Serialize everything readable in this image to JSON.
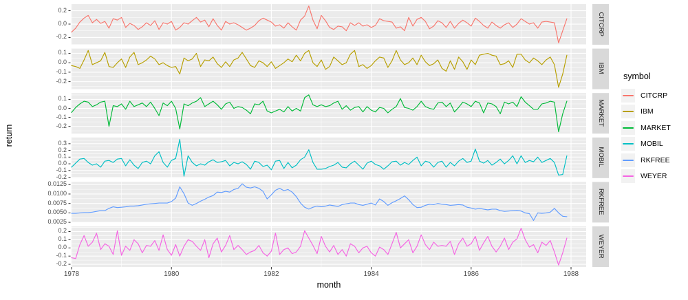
{
  "style": {
    "panel_bg": "#EBEBEB",
    "strip_bg": "#D9D9D9",
    "grid_color": "#FFFFFF",
    "axis_text_color": "#4D4D4D",
    "tick_mark_color": "#333333",
    "strip_text_color": "#1A1A1A",
    "legend_key_bg": "#F2F2F2",
    "background": "#FFFFFF"
  },
  "chart_data": {
    "type": "line",
    "title": "",
    "xlabel": "month",
    "ylabel": "return",
    "grid": true,
    "legend": {
      "title": "symbol",
      "position": "right",
      "entries": [
        "CITCRP",
        "IBM",
        "MARKET",
        "MOBIL",
        "RKFREE",
        "WEYER"
      ]
    },
    "x": {
      "start_year": 1978,
      "months": 120,
      "tick_values": [
        1978,
        1980,
        1982,
        1984,
        1986,
        1988
      ],
      "tick_labels": [
        "1978",
        "1980",
        "1982",
        "1984",
        "1986",
        "1988"
      ],
      "minor_tick_values": [
        1979,
        1981,
        1983,
        1985,
        1987
      ]
    },
    "facets": [
      {
        "symbol": "CITCRP",
        "color": "#F8766D",
        "ylim": [
          -0.308,
          0.298
        ],
        "ytick_values": [
          0.2,
          0.0,
          -0.2
        ],
        "ytick_labels": [
          "0.2",
          "0.0",
          "-0.2"
        ],
        "values": [
          -0.12,
          -0.06,
          0.03,
          0.09,
          0.13,
          0.02,
          0.07,
          0.01,
          0.04,
          -0.06,
          0.08,
          0.06,
          0.1,
          -0.05,
          0.01,
          -0.02,
          -0.08,
          -0.04,
          0.02,
          -0.02,
          0.05,
          -0.08,
          0.02,
          0.0,
          0.04,
          -0.09,
          -0.05,
          0.02,
          0.0,
          0.05,
          0.1,
          0.03,
          0.06,
          -0.04,
          0.08,
          -0.02,
          -0.09,
          0.04,
          0.0,
          0.02,
          -0.01,
          -0.05,
          -0.09,
          -0.06,
          -0.02,
          0.05,
          0.09,
          0.06,
          0.03,
          -0.03,
          -0.01,
          -0.06,
          0.02,
          -0.04,
          -0.09,
          0.06,
          0.12,
          0.27,
          0.06,
          -0.07,
          0.13,
          0.05,
          -0.05,
          -0.08,
          -0.03,
          -0.04,
          -0.1,
          0.02,
          -0.02,
          0.02,
          -0.03,
          -0.01,
          -0.05,
          -0.02,
          0.08,
          0.05,
          0.04,
          0.03,
          -0.06,
          -0.04,
          -0.1,
          0.1,
          -0.03,
          0.07,
          0.1,
          0.04,
          -0.07,
          -0.03,
          0.05,
          0.02,
          -0.05,
          0.04,
          -0.06,
          0.01,
          0.06,
          0.02,
          -0.03,
          0.09,
          0.04,
          -0.02,
          -0.06,
          0.03,
          -0.02,
          -0.06,
          -0.01,
          0.02,
          -0.05,
          0.0,
          0.08,
          0.04,
          0.0,
          0.02,
          -0.06,
          0.03,
          0.04,
          0.03,
          0.02,
          -0.28,
          -0.1,
          0.08
        ]
      },
      {
        "symbol": "IBM",
        "color": "#B79F00",
        "ylim": [
          -0.28,
          0.15
        ],
        "ytick_values": [
          0.1,
          0.0,
          -0.1,
          -0.2
        ],
        "ytick_labels": [
          "0.1",
          "0.0",
          "-0.1",
          "-0.2"
        ],
        "values": [
          -0.03,
          -0.04,
          -0.06,
          0.03,
          0.13,
          -0.02,
          0.0,
          0.02,
          0.11,
          -0.04,
          -0.05,
          0.0,
          0.04,
          -0.05,
          0.06,
          0.11,
          -0.02,
          0.0,
          0.03,
          0.07,
          0.04,
          -0.02,
          0.0,
          -0.03,
          -0.05,
          -0.04,
          -0.12,
          0.05,
          0.02,
          0.04,
          0.1,
          -0.04,
          0.03,
          0.02,
          0.06,
          -0.01,
          -0.05,
          0.01,
          -0.04,
          0.03,
          0.05,
          0.11,
          0.04,
          -0.03,
          -0.05,
          0.02,
          0.0,
          -0.04,
          0.01,
          -0.06,
          -0.03,
          0.0,
          0.04,
          0.01,
          0.08,
          0.02,
          0.1,
          0.13,
          0.0,
          -0.04,
          0.03,
          -0.07,
          -0.04,
          0.06,
          0.02,
          -0.02,
          0.0,
          0.09,
          0.13,
          -0.04,
          -0.02,
          -0.06,
          -0.03,
          0.02,
          0.06,
          0.05,
          -0.05,
          0.02,
          0.13,
          0.03,
          -0.02,
          0.0,
          0.05,
          -0.02,
          0.08,
          0.01,
          -0.03,
          -0.01,
          0.03,
          -0.06,
          -0.09,
          0.02,
          -0.07,
          0.06,
          0.01,
          -0.07,
          0.03,
          -0.02,
          0.08,
          0.09,
          0.1,
          0.08,
          0.07,
          -0.02,
          -0.01,
          0.02,
          -0.05,
          0.09,
          0.09,
          0.03,
          0.0,
          0.05,
          0.02,
          -0.02,
          0.03,
          0.06,
          -0.02,
          -0.26,
          -0.12,
          0.08
        ]
      },
      {
        "symbol": "MARKET",
        "color": "#00BA38",
        "ylim": [
          -0.281,
          0.171
        ],
        "ytick_values": [
          0.1,
          0.0,
          -0.1,
          -0.2
        ],
        "ytick_labels": [
          "0.1",
          "0.0",
          "-0.1",
          "-0.2"
        ],
        "values": [
          -0.045,
          0.01,
          0.05,
          0.08,
          0.07,
          0.02,
          0.04,
          0.07,
          0.08,
          -0.2,
          0.03,
          0.02,
          0.05,
          -0.01,
          0.08,
          0.02,
          0.04,
          0.06,
          0.02,
          0.07,
          0.0,
          -0.08,
          0.06,
          0.03,
          0.08,
          0.0,
          -0.23,
          0.05,
          0.03,
          0.06,
          0.08,
          0.12,
          0.02,
          0.05,
          0.08,
          0.04,
          -0.01,
          0.05,
          0.07,
          0.0,
          0.02,
          0.01,
          -0.02,
          -0.06,
          0.05,
          0.04,
          0.08,
          -0.03,
          -0.05,
          -0.03,
          -0.01,
          -0.04,
          0.02,
          -0.03,
          0.0,
          -0.03,
          0.12,
          0.15,
          0.04,
          0.02,
          0.04,
          0.02,
          0.03,
          0.06,
          0.08,
          -0.01,
          0.03,
          -0.02,
          0.01,
          0.02,
          -0.04,
          0.02,
          -0.02,
          -0.04,
          0.01,
          0.0,
          -0.05,
          -0.01,
          0.02,
          0.11,
          0.01,
          0.0,
          -0.02,
          0.02,
          0.08,
          0.02,
          0.0,
          -0.01,
          0.06,
          0.07,
          0.02,
          0.06,
          -0.04,
          0.01,
          0.07,
          0.05,
          0.02,
          0.08,
          0.06,
          -0.05,
          0.06,
          0.05,
          0.02,
          -0.06,
          0.07,
          0.05,
          0.07,
          0.02,
          0.13,
          0.07,
          0.03,
          -0.01,
          -0.01,
          0.05,
          0.06,
          0.08,
          0.07,
          -0.26,
          -0.06,
          0.08
        ]
      },
      {
        "symbol": "MOBIL",
        "color": "#00BFC4",
        "ylim": [
          -0.213,
          0.393
        ],
        "ytick_values": [
          0.3,
          0.2,
          0.1,
          0.0,
          -0.1,
          -0.2
        ],
        "ytick_labels": [
          "0.3",
          "0.2",
          "0.1",
          "0.0",
          "-0.1",
          "-0.2"
        ],
        "values": [
          -0.05,
          0.01,
          0.07,
          0.08,
          0.02,
          -0.02,
          0.0,
          -0.05,
          0.04,
          0.05,
          0.02,
          0.07,
          0.08,
          -0.03,
          0.06,
          -0.02,
          -0.07,
          0.02,
          0.04,
          0.0,
          0.12,
          0.18,
          0.02,
          -0.05,
          0.05,
          0.08,
          0.365,
          -0.185,
          0.12,
          0.02,
          -0.03,
          0.0,
          -0.02,
          0.03,
          0.06,
          0.02,
          0.03,
          0.05,
          -0.03,
          0.02,
          0.0,
          0.03,
          -0.01,
          -0.08,
          0.04,
          0.02,
          -0.04,
          -0.02,
          -0.09,
          0.04,
          0.05,
          -0.07,
          0.02,
          -0.06,
          -0.02,
          0.06,
          0.1,
          0.21,
          0.02,
          -0.08,
          -0.08,
          -0.07,
          -0.04,
          -0.02,
          0.02,
          -0.05,
          -0.06,
          0.0,
          0.04,
          -0.02,
          -0.08,
          0.01,
          0.04,
          -0.01,
          -0.03,
          -0.08,
          -0.03,
          0.03,
          0.04,
          -0.02,
          0.02,
          -0.01,
          0.05,
          0.1,
          -0.03,
          0.04,
          0.02,
          -0.05,
          0.02,
          0.04,
          -0.05,
          0.02,
          -0.03,
          0.04,
          0.08,
          0.02,
          0.04,
          0.22,
          0.04,
          0.01,
          0.05,
          -0.02,
          0.02,
          0.07,
          0.0,
          0.05,
          0.12,
          0.0,
          0.12,
          0.02,
          0.05,
          0.03,
          0.1,
          0.02,
          0.05,
          0.08,
          0.02,
          -0.17,
          -0.16,
          0.12
        ]
      },
      {
        "symbol": "RKFREE",
        "color": "#619CFF",
        "ylim": [
          0.00245,
          0.0132
        ],
        "ytick_values": [
          0.0125,
          0.01,
          0.0075,
          0.005,
          0.0025
        ],
        "ytick_labels": [
          "0.0125",
          "0.0100",
          "0.0075",
          "0.0050",
          "0.0025"
        ],
        "values": [
          0.0049,
          0.0049,
          0.005,
          0.0051,
          0.0051,
          0.0052,
          0.0054,
          0.0056,
          0.0056,
          0.0062,
          0.0066,
          0.0064,
          0.0065,
          0.0066,
          0.0068,
          0.0068,
          0.0069,
          0.0071,
          0.0073,
          0.0074,
          0.0075,
          0.0076,
          0.0076,
          0.0076,
          0.008,
          0.0089,
          0.0119,
          0.0101,
          0.0076,
          0.007,
          0.0075,
          0.0081,
          0.0086,
          0.0092,
          0.0096,
          0.0105,
          0.0104,
          0.0107,
          0.0105,
          0.0112,
          0.0115,
          0.0127,
          0.0118,
          0.0116,
          0.0119,
          0.0115,
          0.0107,
          0.0087,
          0.0098,
          0.011,
          0.0115,
          0.0109,
          0.0112,
          0.0105,
          0.0093,
          0.0076,
          0.0065,
          0.006,
          0.0065,
          0.0068,
          0.0066,
          0.0068,
          0.0071,
          0.0069,
          0.0067,
          0.0072,
          0.0074,
          0.0076,
          0.0076,
          0.0072,
          0.007,
          0.0073,
          0.0076,
          0.0071,
          0.0087,
          0.008,
          0.007,
          0.0077,
          0.0082,
          0.0088,
          0.0095,
          0.0085,
          0.0072,
          0.0064,
          0.0065,
          0.007,
          0.0073,
          0.0072,
          0.0075,
          0.0073,
          0.0072,
          0.007,
          0.0071,
          0.0072,
          0.0071,
          0.0065,
          0.0063,
          0.006,
          0.0062,
          0.006,
          0.0058,
          0.006,
          0.006,
          0.0056,
          0.0054,
          0.0055,
          0.0056,
          0.0057,
          0.0055,
          0.005,
          0.0048,
          0.003,
          0.005,
          0.0049,
          0.005,
          0.0052,
          0.0062,
          0.005,
          0.0041,
          0.004
        ]
      },
      {
        "symbol": "WEYER",
        "color": "#F564E3",
        "ylim": [
          -0.233,
          0.263
        ],
        "ytick_values": [
          0.2,
          0.1,
          0.0,
          -0.1,
          -0.2
        ],
        "ytick_labels": [
          "0.2",
          "0.1",
          "0.0",
          "-0.1",
          "-0.2"
        ],
        "values": [
          -0.12,
          -0.13,
          0.04,
          0.15,
          0.02,
          0.07,
          0.18,
          -0.02,
          0.05,
          0.02,
          -0.08,
          0.21,
          -0.09,
          0.02,
          -0.03,
          0.1,
          0.05,
          -0.06,
          0.03,
          0.02,
          0.09,
          -0.03,
          0.16,
          -0.02,
          -0.09,
          0.04,
          -0.1,
          0.02,
          0.1,
          0.08,
          0.02,
          -0.03,
          0.1,
          -0.12,
          0.05,
          0.12,
          -0.05,
          0.03,
          0.15,
          -0.02,
          0.03,
          -0.02,
          -0.08,
          -0.05,
          -0.03,
          0.03,
          -0.06,
          -0.1,
          -0.04,
          0.18,
          -0.08,
          -0.02,
          0.0,
          -0.07,
          -0.05,
          0.02,
          0.21,
          0.12,
          0.03,
          -0.07,
          0.14,
          0.02,
          -0.05,
          0.03,
          -0.08,
          -0.02,
          -0.1,
          0.05,
          0.02,
          -0.06,
          0.0,
          0.02,
          -0.06,
          -0.1,
          0.01,
          -0.02,
          -0.08,
          0.05,
          0.19,
          0.0,
          0.05,
          0.1,
          -0.06,
          0.02,
          0.16,
          0.04,
          -0.02,
          0.07,
          0.02,
          0.03,
          0.02,
          0.08,
          -0.08,
          0.05,
          0.12,
          0.02,
          0.05,
          0.14,
          -0.03,
          0.06,
          0.14,
          0.02,
          -0.05,
          0.02,
          0.12,
          -0.02,
          0.07,
          0.11,
          0.24,
          0.1,
          0.01,
          0.04,
          -0.06,
          0.07,
          0.03,
          0.09,
          -0.05,
          -0.21,
          -0.06,
          0.12
        ]
      }
    ]
  }
}
